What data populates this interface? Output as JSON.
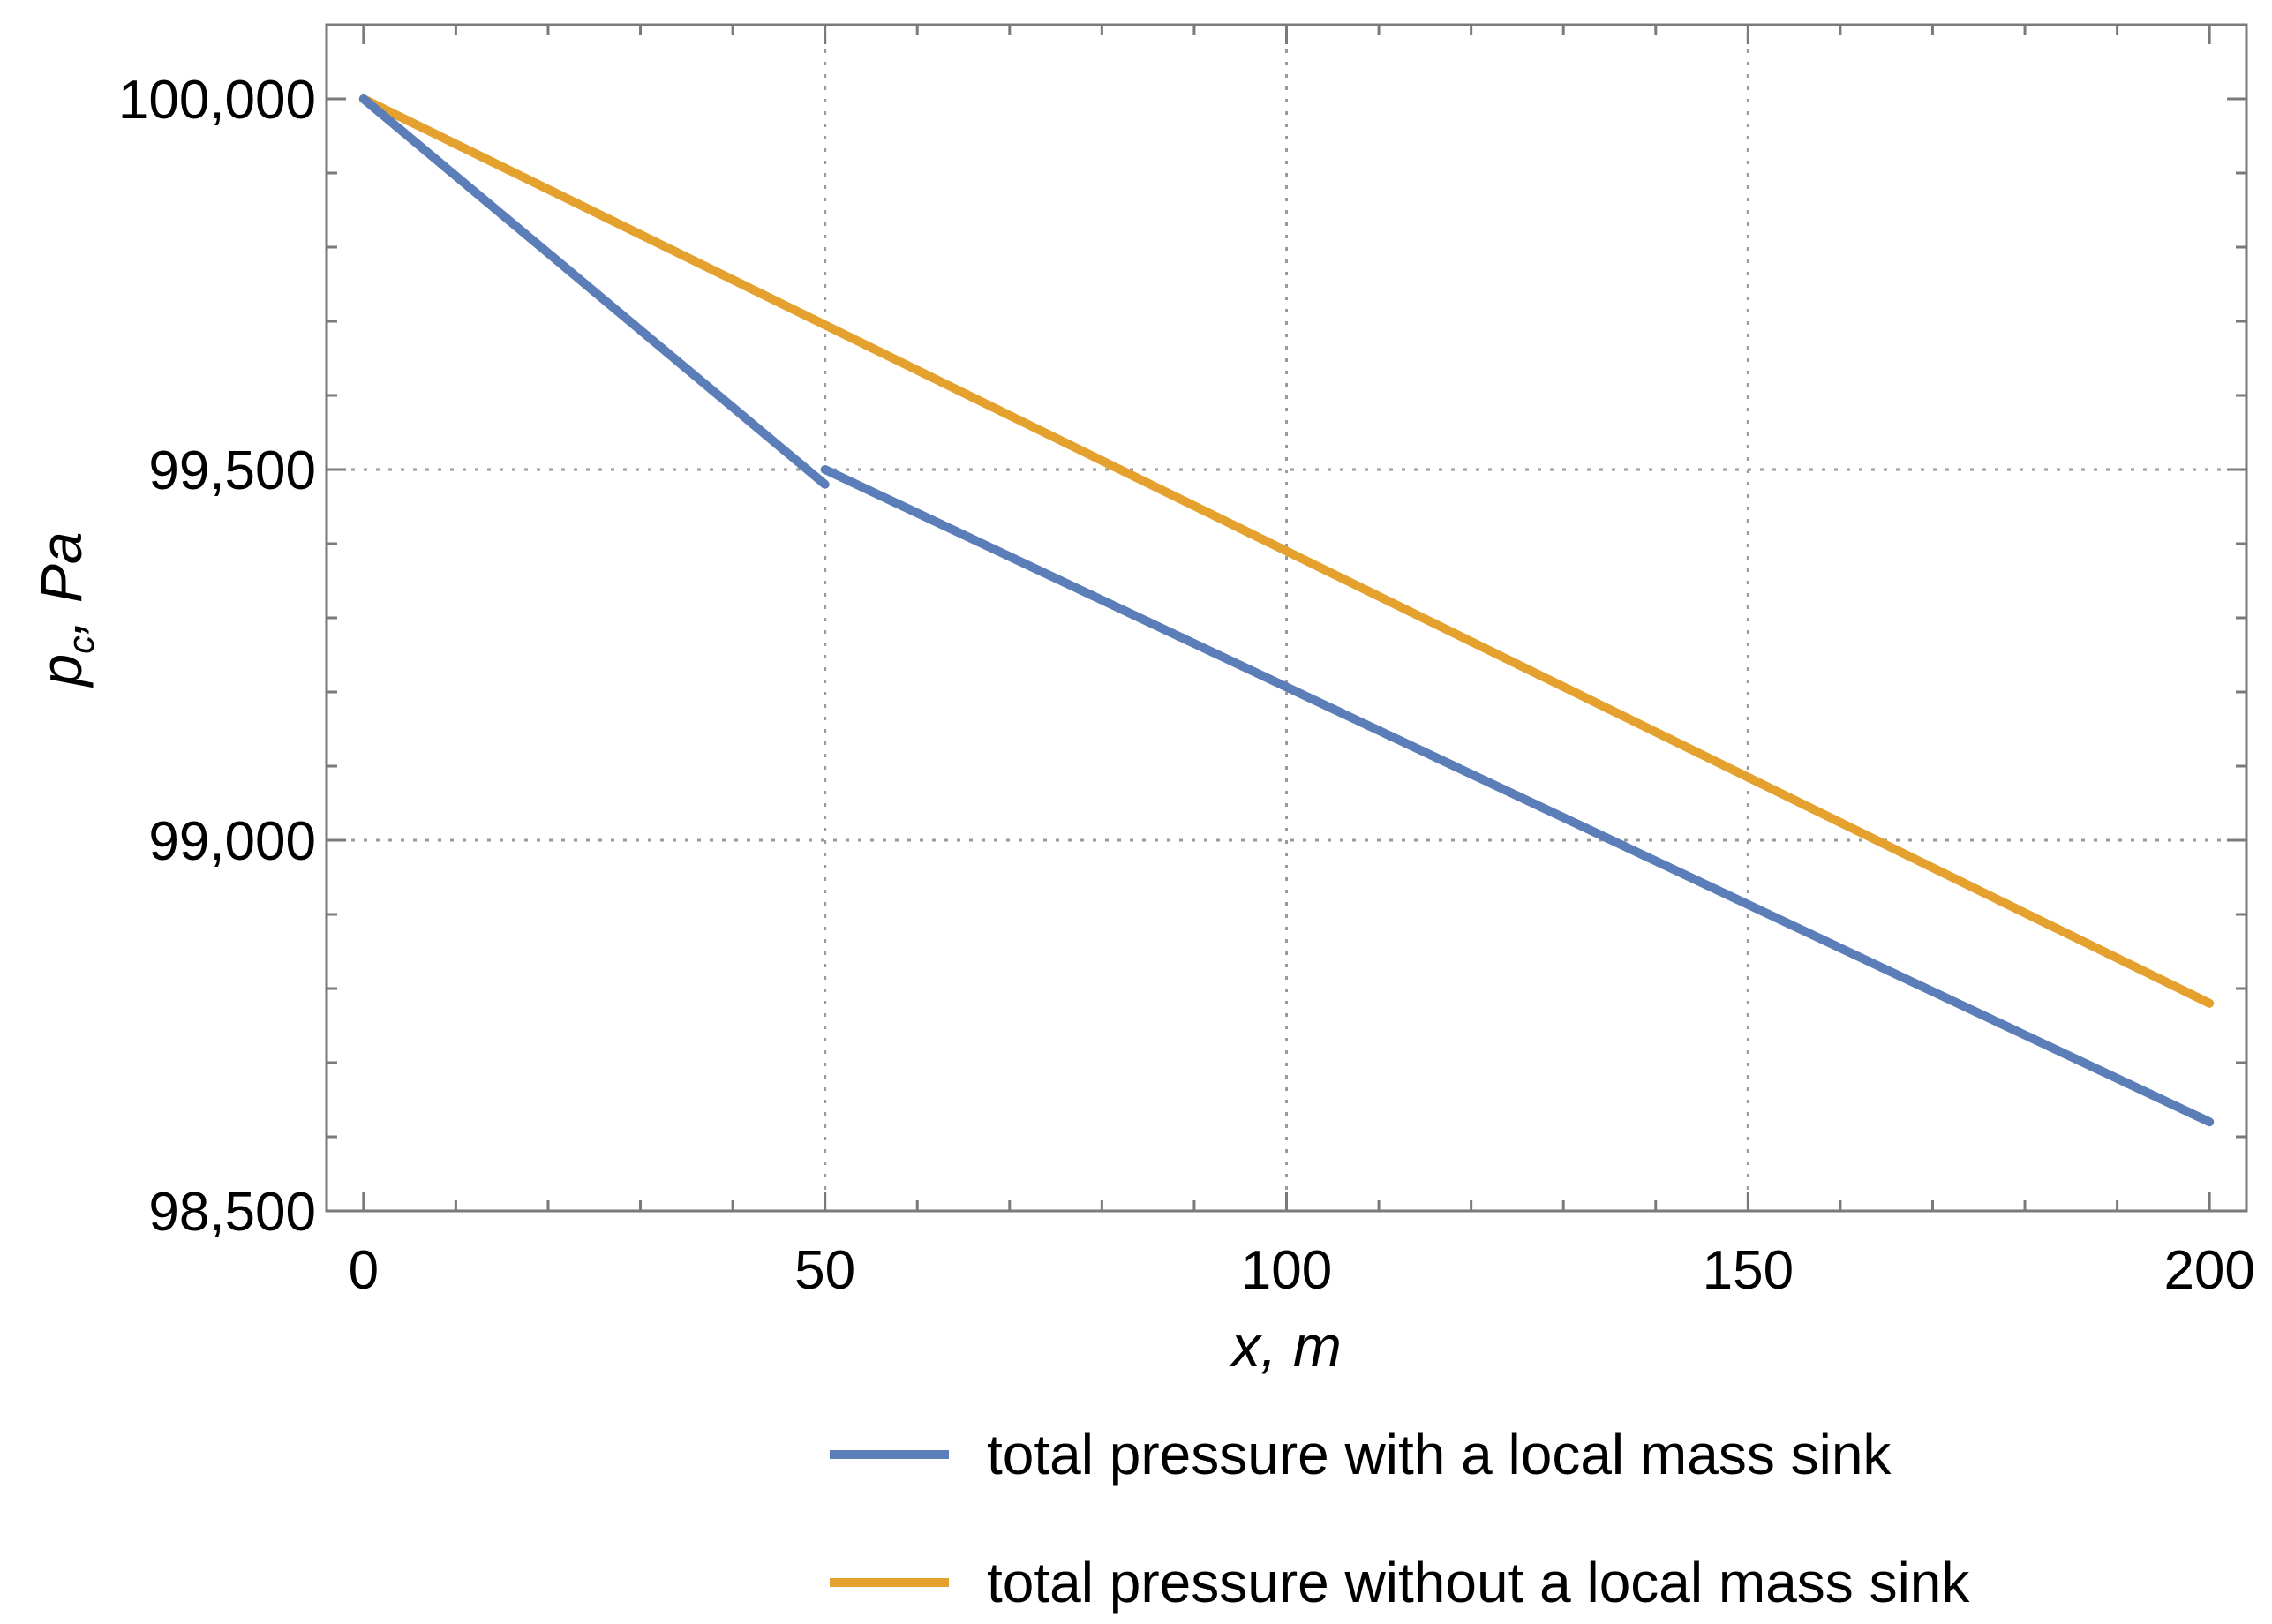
{
  "chart_data": {
    "type": "line",
    "title": "",
    "xlabel": "x, m",
    "ylabel": "p_c, Pa",
    "ylabel_main": "p",
    "ylabel_sub": "c",
    "ylabel_rest": ", Pa",
    "xlim": [
      -4,
      204
    ],
    "ylim": [
      98500,
      100100
    ],
    "x_ticks": [
      0,
      50,
      100,
      150,
      200
    ],
    "x_tick_labels": [
      "0",
      "50",
      "100",
      "150",
      "200"
    ],
    "y_ticks": [
      98500,
      99000,
      99500,
      100000
    ],
    "y_tick_labels": [
      "98,500",
      "99,000",
      "99,500",
      "100,000"
    ],
    "x_gridlines": [
      50,
      100,
      150
    ],
    "y_gridlines": [
      99000,
      99500
    ],
    "legend_position": "bottom",
    "series": [
      {
        "name": "total pressure with a local mass sink",
        "color": "#5B7DB8",
        "points": [
          [
            0,
            100000
          ],
          [
            50,
            99480
          ]
        ],
        "segment2": [
          [
            50,
            99500
          ],
          [
            200,
            98620
          ]
        ]
      },
      {
        "name": "total pressure without a local mass sink",
        "color": "#E5A12D",
        "points": [
          [
            0,
            100000
          ],
          [
            200,
            98780
          ]
        ]
      }
    ]
  }
}
